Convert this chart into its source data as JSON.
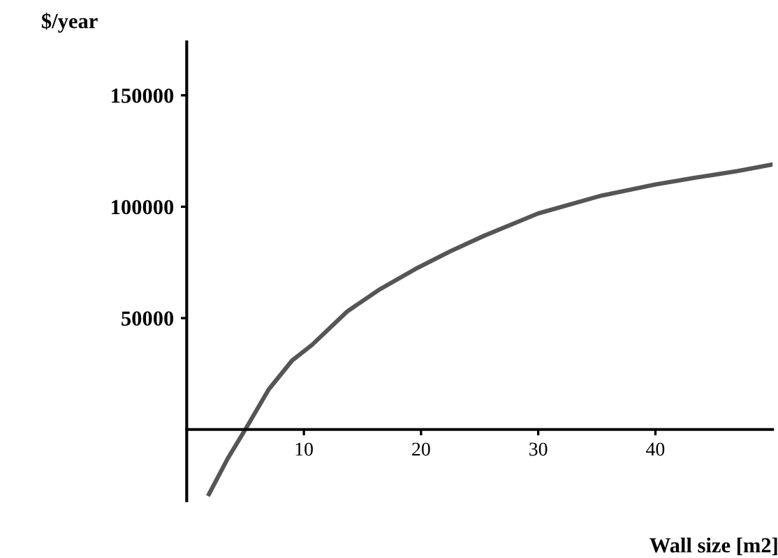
{
  "chart_data": {
    "type": "line",
    "xlabel": "Wall size [m2]",
    "ylabel": "$/year",
    "series": [
      {
        "color": "#555555",
        "x": [
          1.9,
          3.5,
          5,
          7,
          9,
          10.7,
          13.7,
          16.5,
          19.5,
          22.5,
          25.4,
          30,
          35.4,
          40,
          43.4,
          47,
          50
        ],
        "values": [
          -29000,
          -13000,
          0,
          18000,
          31000,
          38000,
          53000,
          63000,
          72000,
          80000,
          87000,
          97000,
          105000,
          110000,
          113000,
          116000,
          119000
        ]
      }
    ],
    "xlim": [
      0,
      50
    ],
    "ylim": [
      -32000,
      174000
    ],
    "xticks": [
      10,
      20,
      30,
      40
    ],
    "yticks": [
      50000,
      100000,
      150000
    ],
    "grid": false,
    "legend": false,
    "marker": "none",
    "line_style": "solid"
  }
}
